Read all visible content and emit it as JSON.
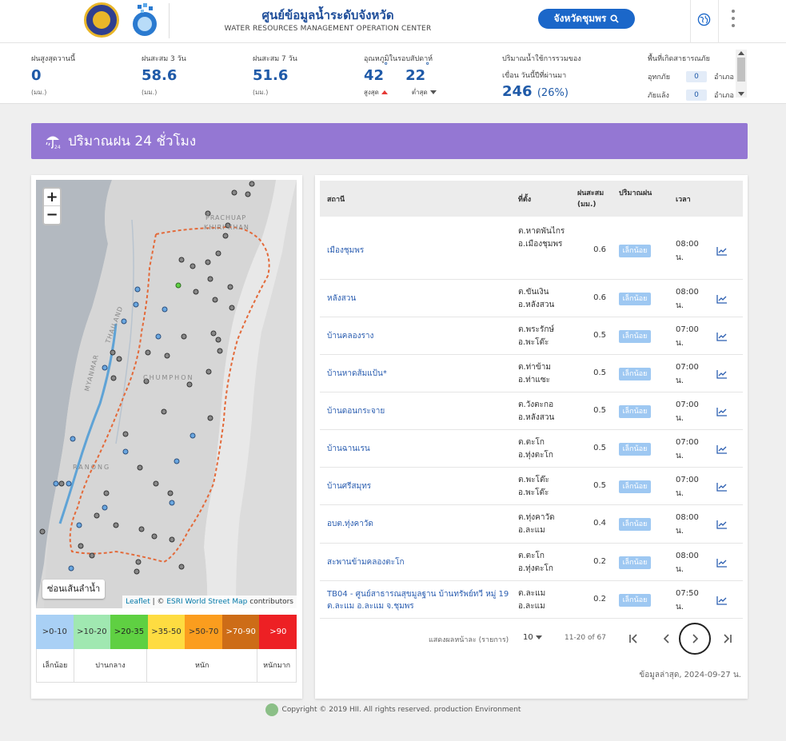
{
  "header": {
    "title": "ศูนย์ข้อมูลน้ำระดับจังหวัด",
    "subtitle": "WATER RESOURCES MANAGEMENT OPERATION CENTER",
    "province_button": "จังหวัดชุมพร"
  },
  "stats": {
    "max_rain_yesterday": {
      "label": "ฝนสูงสุดวานนี้",
      "value": "0",
      "unit": "(มม.)"
    },
    "rain_3day": {
      "label": "ฝนสะสม 3 วัน",
      "value": "58.6",
      "unit": "(มม.)"
    },
    "rain_7day": {
      "label": "ฝนสะสม 7 วัน",
      "value": "51.6",
      "unit": "(มม.)"
    },
    "temperature": {
      "label": "อุณหภูมิในรอบสัปดาห์",
      "max": "42",
      "min": "22",
      "max_label": "สูงสุด",
      "min_label": "ต่ำสุด"
    },
    "dam": {
      "label1": "ปริมาณน้ำใช้การรวมของ",
      "label2": "เขื่อน วันนี้ปีที่ผ่านมา",
      "value": "246",
      "percent": "(26%)"
    },
    "disaster": {
      "label": "พื้นที่เกิดสาธารณภัย",
      "flood_label": "อุทกภัย",
      "flood_count": "0",
      "drought_label": "ภัยแล้ง",
      "drought_count": "0",
      "unit": "อำเภอ"
    }
  },
  "banner": {
    "title": "ปริมาณฝน 24 ชั่วโมง"
  },
  "map": {
    "zoom_in": "+",
    "zoom_out": "−",
    "river_button": "ซ่อนเส้นลำน้ำ",
    "label_prachuap": "PRACHUAP",
    "label_khiri": "KHIRI KHAN",
    "label_chumphon": "CHUMPHON",
    "label_ranong": "RANONG",
    "label_thailand": "THAILAND",
    "label_myanmar": "MYANMAR",
    "attribution_leaflet": "Leaflet",
    "attribution_sep": " | © ",
    "attribution_esri": "ESRI World Street Map",
    "attribution_tail": " contributors"
  },
  "legend": {
    "bins": [
      {
        "label": ">0-10",
        "color": "#a9d0f5",
        "text": "#333"
      },
      {
        "label": ">10-20",
        "color": "#a0e8b1",
        "text": "#333"
      },
      {
        "label": ">20-35",
        "color": "#5fd042",
        "text": "#222"
      },
      {
        "label": ">35-50",
        "color": "#fedc41",
        "text": "#333"
      },
      {
        "label": ">50-70",
        "color": "#fb9d1e",
        "text": "#333"
      },
      {
        "label": ">70-90",
        "color": "#cd6c17",
        "text": "#fff"
      },
      {
        "label": ">90",
        "color": "#ed2024",
        "text": "#fff"
      }
    ],
    "categories": [
      "เล็กน้อย",
      "ปานกลาง",
      "หนัก",
      "หนักมาก"
    ]
  },
  "table": {
    "headers": {
      "station": "สถานี",
      "location": "ที่ตั้ง",
      "rain": "ฝนสะสม (มม.)",
      "amount": "ปริมาณฝน",
      "time": "เวลา"
    },
    "rows": [
      {
        "station": "เมืองชุมพร",
        "location": "ต.หาดพันไกร อ.เมืองชุมพร",
        "rain": "0.6",
        "level": "เล็กน้อย",
        "time": "08:00 น."
      },
      {
        "station": "หลังสวน",
        "location": "ต.ขันเงิน อ.หลังสวน",
        "rain": "0.6",
        "level": "เล็กน้อย",
        "time": "08:00 น."
      },
      {
        "station": "บ้านคลองราง",
        "location": "ต.พระรักษ์ อ.พะโต๊ะ",
        "rain": "0.5",
        "level": "เล็กน้อย",
        "time": "07:00 น."
      },
      {
        "station": "บ้านหาดส้มแป้น*",
        "location": "ต.ท่าข้าม อ.ท่าแซะ",
        "rain": "0.5",
        "level": "เล็กน้อย",
        "time": "07:00 น."
      },
      {
        "station": "บ้านดอนกระจาย",
        "location": "ต.วังตะกอ อ.หลังสวน",
        "rain": "0.5",
        "level": "เล็กน้อย",
        "time": "07:00 น."
      },
      {
        "station": "บ้านฉานเรน",
        "location": "ต.ตะโก อ.ทุ่งตะโก",
        "rain": "0.5",
        "level": "เล็กน้อย",
        "time": "07:00 น."
      },
      {
        "station": "บ้านศรีสมุทร",
        "location": "ต.พะโต๊ะ อ.พะโต๊ะ",
        "rain": "0.5",
        "level": "เล็กน้อย",
        "time": "07:00 น."
      },
      {
        "station": "อบต.ทุ่งคาวัด",
        "location": "ต.ทุ่งคาวัด อ.ละแม",
        "rain": "0.4",
        "level": "เล็กน้อย",
        "time": "08:00 น."
      },
      {
        "station": "สะพานข้ามคลองตะโก",
        "location": "ต.ตะโก อ.ทุ่งตะโก",
        "rain": "0.2",
        "level": "เล็กน้อย",
        "time": "08:00 น."
      },
      {
        "station": "TB04 - ศูนย์สาธารณสุขมูลฐาน บ้านทรัพย์ทวี หมู่ 19 ต.ละแม อ.ละแม จ.ชุมพร",
        "location": "ต.ละแม อ.ละแม",
        "rain": "0.2",
        "level": "เล็กน้อย",
        "time": "07:50 น."
      }
    ],
    "per_page_label": "แสดงผลหน้าละ (รายการ)",
    "per_page": "10",
    "range": "11-20 of 67",
    "updated": "ข้อมูลล่าสุด, 2024-09-27 น."
  },
  "footer": {
    "text": "Copyright © 2019 HII. All rights reserved. production Environment"
  }
}
